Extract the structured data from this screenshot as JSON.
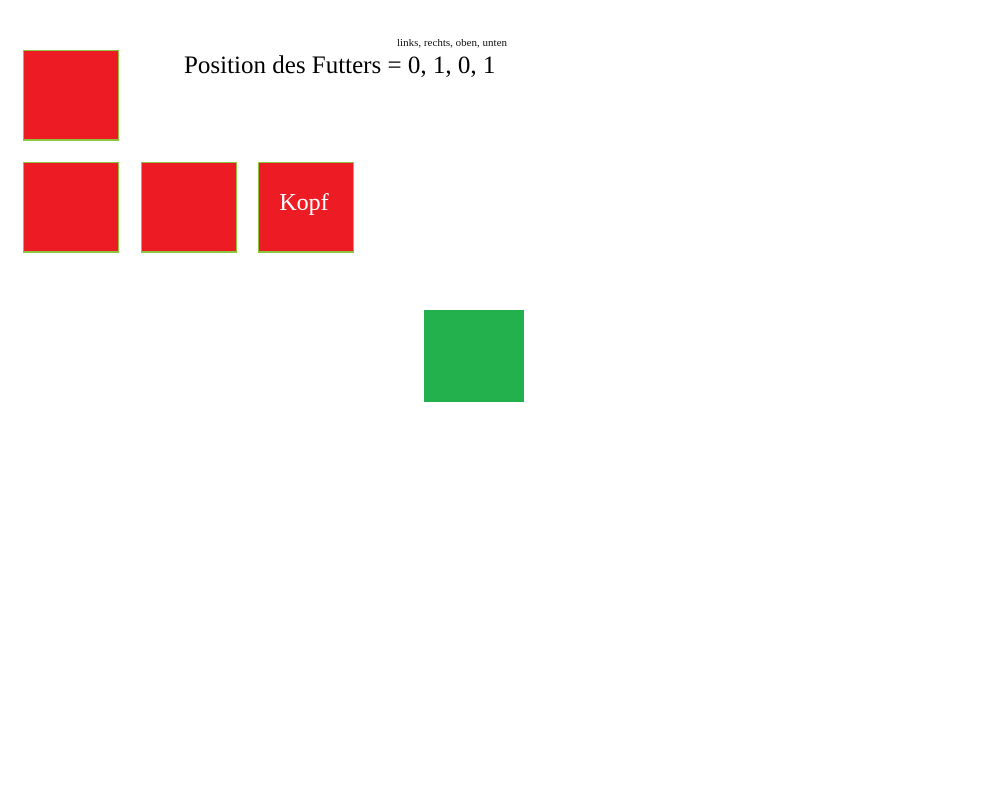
{
  "game": {
    "direction_legend": "links, rechts, oben, unten",
    "food_position_text": "Position des Futters = 0, 1, 0, 1",
    "head_label": "Kopf",
    "colors": {
      "snake": "#ed1c24",
      "snake_border": "#8cc63f",
      "food": "#22b14c",
      "background": "#ffffff",
      "head_text": "#ffffff"
    },
    "snake_segment_count": 4,
    "food_count": 1
  }
}
